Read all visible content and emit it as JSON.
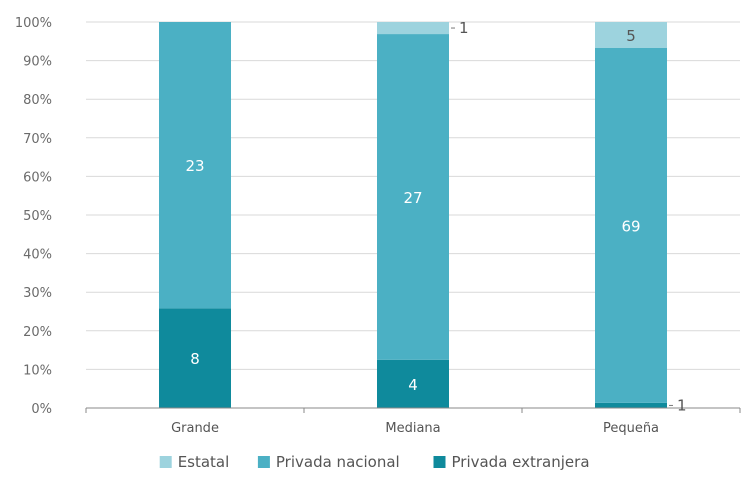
{
  "chart_data": {
    "type": "bar",
    "stacked": true,
    "categories": [
      "Grande",
      "Mediana",
      "Pequeña"
    ],
    "series": [
      {
        "name": "Privada extranjera",
        "values": [
          8,
          4,
          1
        ],
        "color": "#0f8a9c"
      },
      {
        "name": "Privada nacional",
        "values": [
          23,
          27,
          69
        ],
        "color": "#4bb0c4"
      },
      {
        "name": "Estatal",
        "values": [
          0,
          1,
          5
        ],
        "color": "#9dd3de"
      }
    ],
    "data_labels": [
      [
        "8",
        "23",
        ""
      ],
      [
        "4",
        "27",
        "1"
      ],
      [
        "1",
        "69",
        "5"
      ]
    ],
    "y_ticks": [
      "0%",
      "10%",
      "20%",
      "30%",
      "40%",
      "50%",
      "60%",
      "70%",
      "80%",
      "90%",
      "100%"
    ],
    "ylim": [
      0,
      100
    ],
    "grid": true,
    "legend_position": "bottom",
    "legend": [
      "Estatal",
      "Privada nacional",
      "Privada extranjera"
    ],
    "colors": {
      "grid": "#d9d9d9",
      "axis": "#888888"
    }
  }
}
